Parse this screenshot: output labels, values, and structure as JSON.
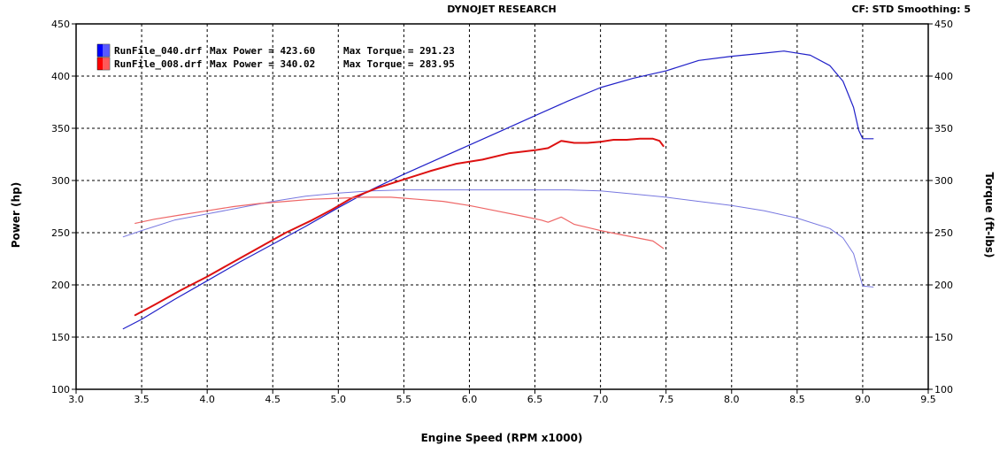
{
  "header": {
    "title": "DYNOJET RESEARCH",
    "correction": "CF: STD  Smoothing: 5"
  },
  "chart_data": {
    "type": "line",
    "xlabel": "Engine Speed (RPM x1000)",
    "ylabel": "Power (hp)",
    "y2label": "Torque (ft-lbs)",
    "xlim": [
      3.0,
      9.5
    ],
    "ylim": [
      100,
      450
    ],
    "y2lim": [
      100,
      450
    ],
    "xticks": [
      3.0,
      3.5,
      4.0,
      4.5,
      5.0,
      5.5,
      6.0,
      6.5,
      7.0,
      7.5,
      8.0,
      8.5,
      9.0,
      9.5
    ],
    "yticks": [
      100,
      150,
      200,
      250,
      300,
      350,
      400,
      450
    ],
    "grid": true,
    "legend_position": "top-left",
    "legend": [
      {
        "file": "RunFile_040.drf",
        "power_text": "Max Power = 423.60",
        "torque_text": "Max Torque = 291.23",
        "color": "#0000ff"
      },
      {
        "file": "RunFile_008.drf",
        "power_text": "Max Power = 340.02",
        "torque_text": "Max Torque = 283.95",
        "color": "#ff0000"
      }
    ],
    "series": [
      {
        "run": "RunFile_040",
        "measure": "power",
        "color": "#2020c8",
        "width": 1.2,
        "x": [
          3.36,
          3.5,
          3.75,
          4.0,
          4.25,
          4.5,
          4.75,
          5.0,
          5.25,
          5.5,
          5.75,
          6.0,
          6.25,
          6.5,
          6.75,
          7.0,
          7.25,
          7.5,
          7.75,
          8.0,
          8.25,
          8.4,
          8.6,
          8.75,
          8.85,
          8.93,
          8.97,
          9.0,
          9.08
        ],
        "y": [
          158,
          167,
          186,
          204,
          222,
          239,
          256,
          274,
          291,
          306,
          320,
          334,
          348,
          362,
          376,
          389,
          398,
          405,
          415,
          419,
          422,
          424,
          420,
          410,
          395,
          370,
          348,
          340,
          340
        ]
      },
      {
        "run": "RunFile_040",
        "measure": "torque",
        "color": "#7878e0",
        "width": 1.0,
        "x": [
          3.36,
          3.5,
          3.75,
          4.0,
          4.25,
          4.5,
          4.75,
          5.0,
          5.25,
          5.5,
          5.75,
          6.0,
          6.25,
          6.5,
          6.75,
          7.0,
          7.25,
          7.5,
          7.75,
          8.0,
          8.25,
          8.5,
          8.75,
          8.85,
          8.93,
          8.97,
          9.0,
          9.08
        ],
        "y": [
          246,
          252,
          262,
          268,
          274,
          280,
          285,
          288,
          290,
          291,
          291,
          291,
          291,
          291,
          291,
          290,
          287,
          284,
          280,
          276,
          271,
          264,
          254,
          245,
          230,
          212,
          199,
          198
        ]
      },
      {
        "run": "RunFile_008",
        "measure": "power",
        "color": "#dd1111",
        "width": 2.0,
        "x": [
          3.45,
          3.6,
          3.8,
          4.0,
          4.2,
          4.4,
          4.6,
          4.8,
          4.95,
          5.1,
          5.3,
          5.5,
          5.7,
          5.9,
          6.1,
          6.3,
          6.5,
          6.6,
          6.7,
          6.8,
          6.9,
          7.0,
          7.1,
          7.2,
          7.3,
          7.4,
          7.45,
          7.48
        ],
        "y": [
          171,
          181,
          195,
          208,
          222,
          236,
          250,
          262,
          272,
          283,
          293,
          301,
          309,
          316,
          320,
          326,
          329,
          331,
          338,
          336,
          336,
          337,
          339,
          339,
          340,
          340,
          338,
          333
        ]
      },
      {
        "run": "RunFile_008",
        "measure": "torque",
        "color": "#ee6666",
        "width": 1.2,
        "x": [
          3.45,
          3.6,
          3.8,
          4.0,
          4.2,
          4.4,
          4.6,
          4.8,
          5.0,
          5.2,
          5.4,
          5.6,
          5.8,
          6.0,
          6.2,
          6.4,
          6.55,
          6.6,
          6.7,
          6.8,
          7.0,
          7.2,
          7.4,
          7.48
        ],
        "y": [
          259,
          263,
          267,
          271,
          275,
          278,
          280,
          282,
          283,
          284,
          284,
          282,
          280,
          276,
          271,
          266,
          262,
          260,
          265,
          258,
          252,
          247,
          242,
          235
        ]
      }
    ]
  }
}
